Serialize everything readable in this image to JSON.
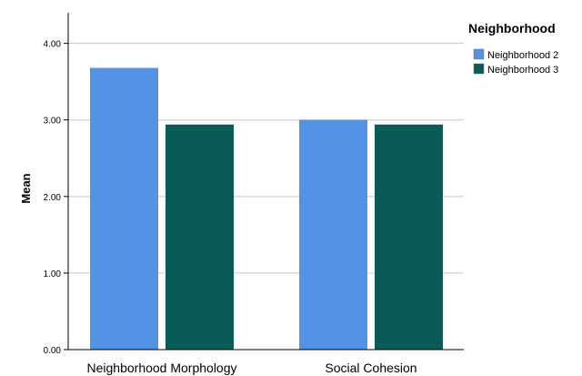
{
  "chart_data": {
    "type": "bar",
    "categories": [
      "Neighborhood Morphology",
      "Social Cohesion"
    ],
    "series": [
      {
        "name": "Neighborhood 2",
        "values": [
          3.68,
          3.0
        ],
        "color": "#5592e3"
      },
      {
        "name": "Neighborhood 3",
        "values": [
          2.94,
          2.94
        ],
        "color": "#0a5a57"
      }
    ],
    "title": "",
    "xlabel": "",
    "ylabel": "Mean",
    "ylim": [
      0,
      4.4
    ],
    "yticks": [
      "0.00",
      "1.00",
      "2.00",
      "3.00",
      "4.00"
    ],
    "grid": true,
    "legend": {
      "title": "Neighborhood",
      "position": "top-right"
    }
  }
}
